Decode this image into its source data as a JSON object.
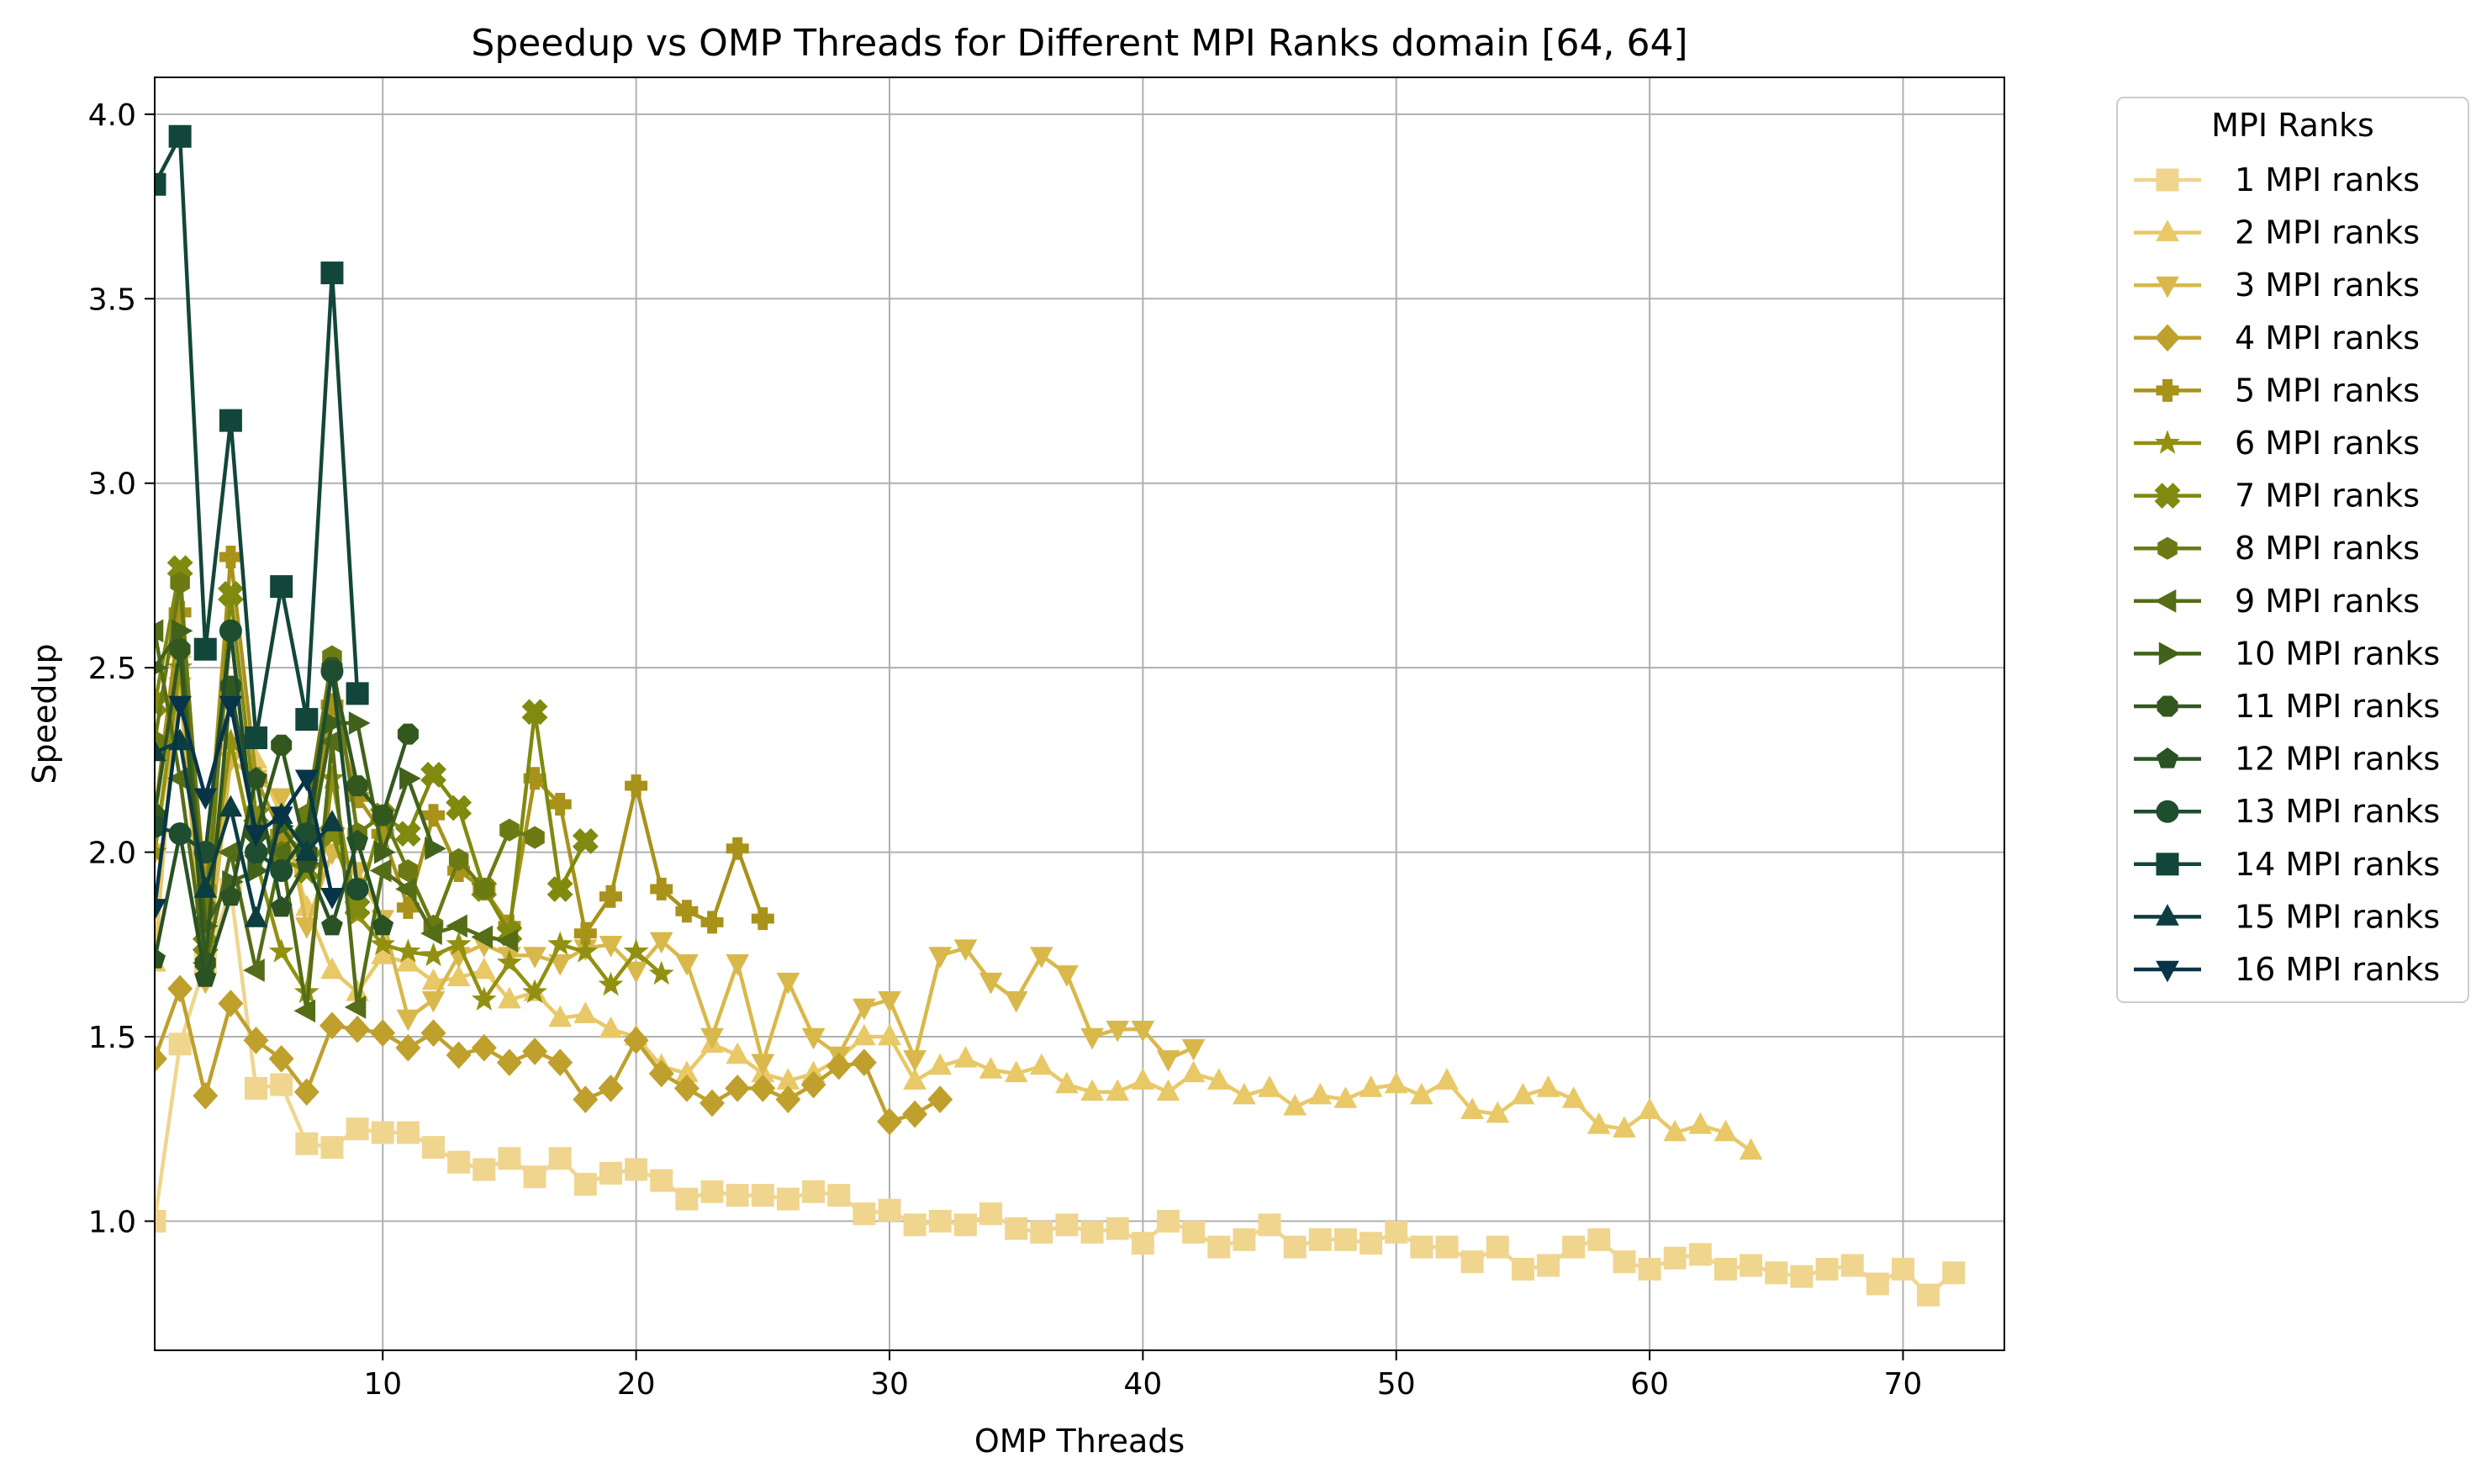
{
  "chart_data": {
    "type": "line",
    "title": "Speedup vs OMP Threads for Different MPI Ranks domain [64, 64]",
    "xlabel": "OMP Threads",
    "ylabel": "Speedup",
    "xlim": [
      1,
      74
    ],
    "ylim": [
      0.65,
      4.1
    ],
    "xticks": [
      10,
      20,
      30,
      40,
      50,
      60,
      70
    ],
    "yticks": [
      1.0,
      1.5,
      2.0,
      2.5,
      3.0,
      3.5,
      4.0
    ],
    "ytick_labels": [
      "1.0",
      "1.5",
      "2.0",
      "2.5",
      "3.0",
      "3.5",
      "4.0"
    ],
    "grid": true,
    "legend": {
      "title": "MPI Ranks",
      "placement": "outside-right"
    },
    "series": [
      {
        "name": "1 MPI ranks",
        "color": "#f0d58f",
        "marker": "square",
        "x": [
          1,
          2,
          3,
          4,
          5,
          6,
          7,
          8,
          9,
          10,
          11,
          12,
          13,
          14,
          15,
          16,
          17,
          18,
          19,
          20,
          21,
          22,
          23,
          24,
          25,
          26,
          27,
          28,
          29,
          30,
          31,
          32,
          33,
          34,
          35,
          36,
          37,
          38,
          39,
          40,
          41,
          42,
          43,
          44,
          45,
          46,
          47,
          48,
          49,
          50,
          51,
          52,
          53,
          54,
          55,
          56,
          57,
          58,
          59,
          60,
          61,
          62,
          63,
          64,
          65,
          66,
          67,
          68,
          69,
          70,
          71,
          72
        ],
        "y": [
          1.0,
          1.48,
          1.7,
          1.9,
          1.36,
          1.37,
          1.21,
          1.2,
          1.25,
          1.24,
          1.24,
          1.2,
          1.16,
          1.14,
          1.17,
          1.12,
          1.17,
          1.1,
          1.13,
          1.14,
          1.11,
          1.06,
          1.08,
          1.07,
          1.07,
          1.06,
          1.08,
          1.07,
          1.02,
          1.03,
          0.99,
          1.0,
          0.99,
          1.02,
          0.98,
          0.97,
          0.99,
          0.97,
          0.98,
          0.94,
          1.0,
          0.97,
          0.93,
          0.95,
          0.99,
          0.93,
          0.95,
          0.95,
          0.94,
          0.97,
          0.93,
          0.93,
          0.89,
          0.93,
          0.87,
          0.88,
          0.93,
          0.95,
          0.89,
          0.87,
          0.9,
          0.91,
          0.87,
          0.88,
          0.86,
          0.85,
          0.87,
          0.88,
          0.83,
          0.87,
          0.8,
          0.86
        ]
      },
      {
        "name": "2 MPI ranks",
        "color": "#e8c867",
        "marker": "triangle-up",
        "x": [
          1,
          2,
          3,
          4,
          5,
          6,
          7,
          8,
          9,
          10,
          11,
          12,
          13,
          14,
          15,
          16,
          17,
          18,
          19,
          20,
          21,
          22,
          23,
          24,
          25,
          26,
          27,
          28,
          29,
          30,
          31,
          32,
          33,
          34,
          35,
          36,
          37,
          38,
          39,
          40,
          41,
          42,
          43,
          44,
          45,
          46,
          47,
          48,
          49,
          50,
          51,
          52,
          53,
          54,
          55,
          56,
          57,
          58,
          59,
          60,
          61,
          62,
          63,
          64
        ],
        "y": [
          1.7,
          2.55,
          1.75,
          2.3,
          2.25,
          2.1,
          1.85,
          1.68,
          1.62,
          1.72,
          1.7,
          1.65,
          1.66,
          1.68,
          1.6,
          1.62,
          1.55,
          1.56,
          1.52,
          1.5,
          1.42,
          1.4,
          1.48,
          1.45,
          1.4,
          1.38,
          1.4,
          1.44,
          1.5,
          1.5,
          1.38,
          1.42,
          1.44,
          1.41,
          1.4,
          1.42,
          1.37,
          1.35,
          1.35,
          1.38,
          1.35,
          1.4,
          1.38,
          1.34,
          1.36,
          1.31,
          1.34,
          1.33,
          1.36,
          1.37,
          1.34,
          1.38,
          1.3,
          1.29,
          1.34,
          1.36,
          1.33,
          1.26,
          1.25,
          1.3,
          1.24,
          1.26,
          1.24,
          1.19
        ]
      },
      {
        "name": "3 MPI ranks",
        "color": "#d9b84b",
        "marker": "triangle-down",
        "x": [
          1,
          2,
          3,
          4,
          5,
          6,
          7,
          8,
          9,
          10,
          11,
          12,
          13,
          14,
          15,
          16,
          17,
          18,
          19,
          20,
          21,
          22,
          23,
          24,
          25,
          26,
          27,
          28,
          29,
          30,
          31,
          32,
          33,
          34,
          35,
          36,
          37,
          38,
          39,
          40,
          41,
          42
        ],
        "y": [
          2.0,
          2.45,
          1.65,
          2.25,
          2.2,
          2.15,
          1.8,
          2.0,
          1.95,
          1.82,
          1.55,
          1.6,
          1.72,
          1.75,
          1.72,
          1.72,
          1.7,
          1.74,
          1.75,
          1.68,
          1.76,
          1.7,
          1.5,
          1.7,
          1.43,
          1.65,
          1.5,
          1.45,
          1.58,
          1.6,
          1.44,
          1.72,
          1.74,
          1.65,
          1.6,
          1.72,
          1.67,
          1.5,
          1.52,
          1.52,
          1.44,
          1.47
        ]
      },
      {
        "name": "4 MPI ranks",
        "color": "#bfa02d",
        "marker": "diamond",
        "x": [
          1,
          2,
          3,
          4,
          5,
          6,
          7,
          8,
          9,
          10,
          11,
          12,
          13,
          14,
          15,
          16,
          17,
          18,
          19,
          20,
          21,
          22,
          23,
          24,
          25,
          26,
          27,
          28,
          29,
          30,
          31,
          32
        ],
        "y": [
          1.44,
          1.63,
          1.34,
          1.59,
          1.49,
          1.44,
          1.35,
          1.53,
          1.52,
          1.51,
          1.47,
          1.51,
          1.45,
          1.47,
          1.43,
          1.46,
          1.43,
          1.33,
          1.36,
          1.49,
          1.4,
          1.36,
          1.32,
          1.36,
          1.36,
          1.33,
          1.37,
          1.42,
          1.43,
          1.27,
          1.29,
          1.33
        ]
      },
      {
        "name": "5 MPI ranks",
        "color": "#a8921a",
        "marker": "plus",
        "x": [
          1,
          2,
          3,
          4,
          5,
          6,
          7,
          8,
          9,
          10,
          11,
          12,
          13,
          14,
          15,
          16,
          17,
          18,
          19,
          20,
          21,
          22,
          23,
          24,
          25
        ],
        "y": [
          2.1,
          2.65,
          1.9,
          2.8,
          2.2,
          2.05,
          2.0,
          2.4,
          2.15,
          2.05,
          1.85,
          2.1,
          1.95,
          1.9,
          1.8,
          2.2,
          2.13,
          1.78,
          1.88,
          2.18,
          1.9,
          1.84,
          1.81,
          2.01,
          1.82
        ]
      },
      {
        "name": "6 MPI ranks",
        "color": "#929010",
        "marker": "star",
        "x": [
          1,
          2,
          3,
          4,
          5,
          6,
          7,
          8,
          9,
          10,
          11,
          12,
          13,
          14,
          15,
          16,
          17,
          18,
          19,
          20,
          21
        ],
        "y": [
          2.0,
          2.5,
          1.8,
          2.3,
          1.98,
          1.73,
          1.62,
          2.2,
          1.83,
          1.75,
          1.73,
          1.72,
          1.75,
          1.6,
          1.7,
          1.62,
          1.75,
          1.73,
          1.64,
          1.73,
          1.67
        ]
      },
      {
        "name": "7 MPI ranks",
        "color": "#7f8a0e",
        "marker": "x",
        "x": [
          1,
          2,
          3,
          4,
          5,
          6,
          7,
          8,
          9,
          10,
          11,
          12,
          13,
          14,
          15,
          16,
          17,
          18
        ],
        "y": [
          2.4,
          2.77,
          1.75,
          2.7,
          2.1,
          1.98,
          1.95,
          2.05,
          1.85,
          2.1,
          2.05,
          2.21,
          2.12,
          1.9,
          1.78,
          2.38,
          1.9,
          2.03
        ]
      },
      {
        "name": "8 MPI ranks",
        "color": "#6b7a12",
        "marker": "hexagon",
        "x": [
          1,
          2,
          3,
          4,
          5,
          6,
          7,
          8,
          9,
          10,
          11,
          12,
          13,
          14,
          15,
          16
        ],
        "y": [
          2.3,
          2.73,
          1.85,
          2.6,
          2.0,
          2.0,
          2.1,
          2.53,
          2.05,
          2.1,
          1.95,
          1.8,
          1.98,
          1.9,
          2.06,
          2.04
        ]
      },
      {
        "name": "9 MPI ranks",
        "color": "#556d17",
        "marker": "triangle-left",
        "x": [
          1,
          2,
          3,
          4,
          5,
          6,
          7,
          8,
          9,
          10,
          11,
          12,
          13,
          14,
          15
        ],
        "y": [
          2.6,
          2.2,
          1.7,
          2.0,
          1.68,
          2.0,
          1.57,
          2.3,
          1.58,
          1.95,
          1.9,
          1.78,
          1.8,
          1.77,
          1.76
        ]
      },
      {
        "name": "10 MPI ranks",
        "color": "#42621b",
        "marker": "triangle-right",
        "x": [
          1,
          2,
          3,
          4,
          5,
          6,
          7,
          8,
          9,
          10,
          11,
          12
        ],
        "y": [
          2.5,
          2.6,
          1.8,
          1.92,
          1.95,
          2.07,
          1.97,
          2.35,
          2.35,
          2.0,
          2.2,
          2.01
        ]
      },
      {
        "name": "11 MPI ranks",
        "color": "#33581e",
        "marker": "octagon",
        "x": [
          1,
          2,
          3,
          4,
          5,
          6,
          7,
          8,
          9,
          10,
          11
        ],
        "y": [
          2.1,
          2.55,
          1.7,
          2.45,
          2.05,
          2.29,
          2.0,
          2.5,
          2.18,
          2.1,
          2.32
        ]
      },
      {
        "name": "12 MPI ranks",
        "color": "#2a5224",
        "marker": "pentagon",
        "x": [
          1,
          2,
          3,
          4,
          5,
          6,
          7,
          8,
          9,
          10
        ],
        "y": [
          1.71,
          2.05,
          1.66,
          1.88,
          2.2,
          1.85,
          1.97,
          1.8,
          2.03,
          1.8
        ]
      },
      {
        "name": "13 MPI ranks",
        "color": "#1e4d2f",
        "marker": "circle",
        "x": [
          1,
          2,
          3,
          4,
          5,
          6,
          7,
          8,
          9
        ],
        "y": [
          2.07,
          2.05,
          2.0,
          2.6,
          2.0,
          1.95,
          2.05,
          2.49,
          1.9
        ]
      },
      {
        "name": "14 MPI ranks",
        "color": "#12463a",
        "marker": "square",
        "x": [
          1,
          2,
          3,
          4,
          5,
          6,
          7,
          8,
          9
        ],
        "y": [
          3.81,
          3.94,
          2.55,
          3.17,
          2.31,
          2.72,
          2.36,
          3.57,
          2.43
        ]
      },
      {
        "name": "15 MPI ranks",
        "color": "#0c3d40",
        "marker": "triangle-up",
        "x": [
          1,
          2,
          3,
          4,
          5,
          6,
          7,
          8
        ],
        "y": [
          2.27,
          2.3,
          1.9,
          2.12,
          1.82,
          2.1,
          2.0,
          2.08
        ]
      },
      {
        "name": "16 MPI ranks",
        "color": "#073448",
        "marker": "triangle-down",
        "x": [
          1,
          2,
          3,
          4,
          5,
          6,
          7,
          8
        ],
        "y": [
          1.85,
          2.4,
          2.15,
          2.4,
          2.05,
          2.1,
          2.2,
          1.88
        ]
      }
    ]
  }
}
